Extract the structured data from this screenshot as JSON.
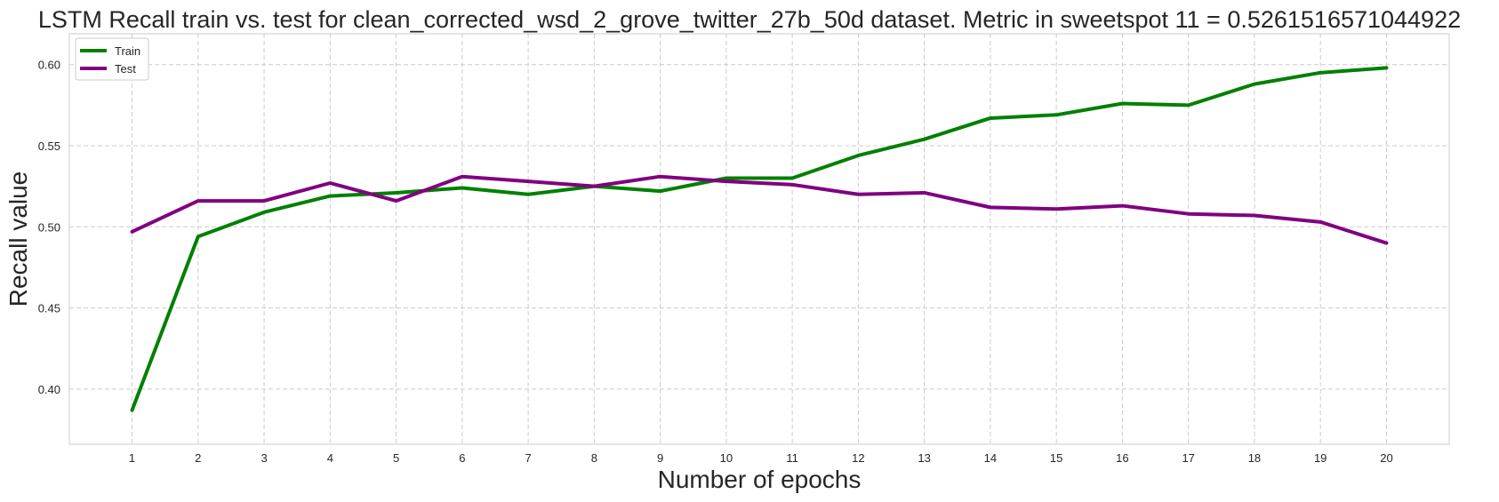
{
  "chart_data": {
    "type": "line",
    "title": "LSTM Recall train vs. test for clean_corrected_wsd_2_grove_twitter_27b_50d dataset. Metric in sweetspot 11 = 0.5261516571044922",
    "xlabel": "Number of epochs",
    "ylabel": "Recall value",
    "x": [
      1,
      2,
      3,
      4,
      5,
      6,
      7,
      8,
      9,
      10,
      11,
      12,
      13,
      14,
      15,
      16,
      17,
      18,
      19,
      20
    ],
    "xlim": [
      0.05,
      20.95
    ],
    "ylim": [
      0.366,
      0.619
    ],
    "yticks": [
      0.4,
      0.45,
      0.5,
      0.55,
      0.6
    ],
    "ytick_labels": [
      "0.40",
      "0.45",
      "0.50",
      "0.55",
      "0.60"
    ],
    "grid": true,
    "grid_style": "dashed",
    "legend_position": "top-left",
    "series": [
      {
        "name": "Train",
        "color": "#008000",
        "values": [
          0.387,
          0.494,
          0.509,
          0.519,
          0.521,
          0.524,
          0.52,
          0.525,
          0.522,
          0.53,
          0.53,
          0.544,
          0.554,
          0.567,
          0.569,
          0.576,
          0.575,
          0.588,
          0.595,
          0.598
        ]
      },
      {
        "name": "Test",
        "color": "#800080",
        "values": [
          0.497,
          0.516,
          0.516,
          0.527,
          0.516,
          0.531,
          0.528,
          0.525,
          0.531,
          0.528,
          0.526,
          0.52,
          0.521,
          0.512,
          0.511,
          0.513,
          0.508,
          0.507,
          0.503,
          0.49
        ]
      }
    ]
  }
}
